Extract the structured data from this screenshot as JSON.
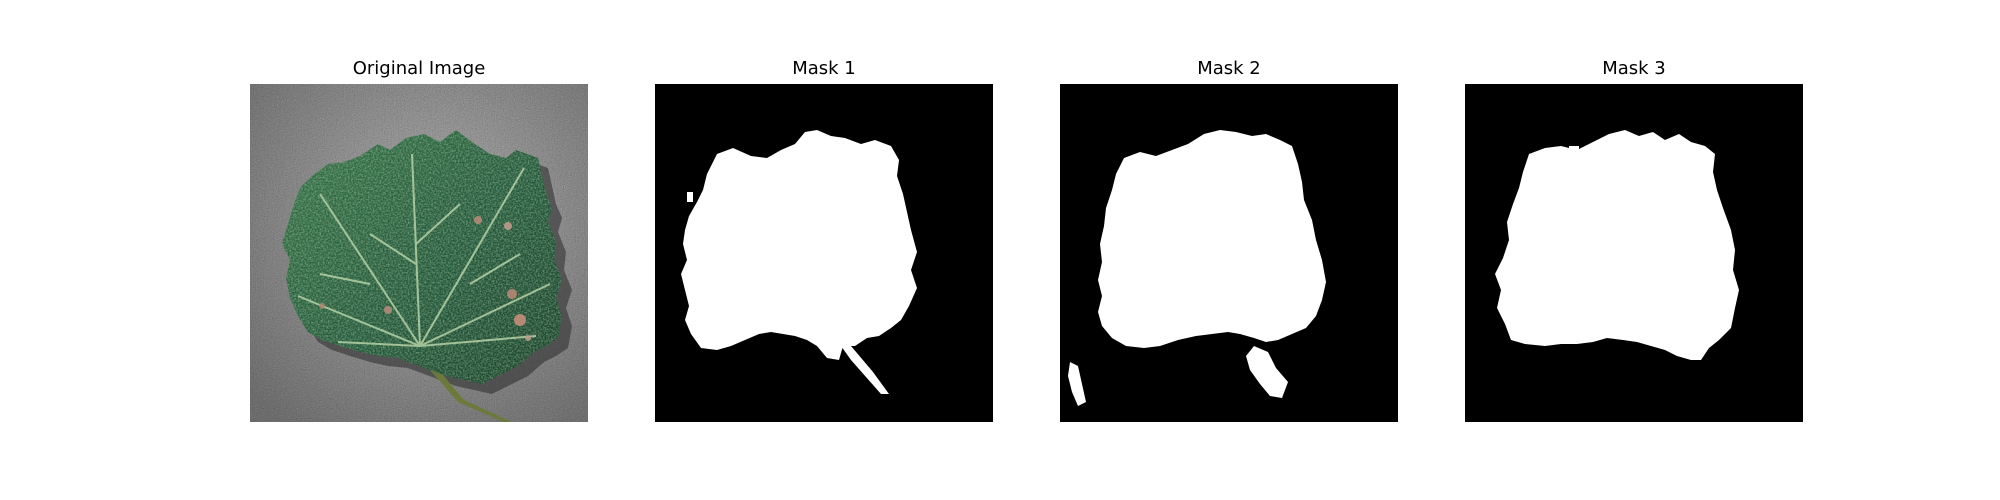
{
  "figure": {
    "panels": [
      {
        "title": "Original Image"
      },
      {
        "title": "Mask 1"
      },
      {
        "title": "Mask 2"
      },
      {
        "title": "Mask 3"
      }
    ]
  },
  "colors": {
    "background": "#ffffff",
    "mask_background": "#000000",
    "mask_foreground": "#ffffff",
    "leaf_dark": "#1d4a2c",
    "leaf_mid": "#2f6b3e",
    "leaf_vein": "#a7c49a",
    "surface_gray": "#9a9a9a"
  }
}
